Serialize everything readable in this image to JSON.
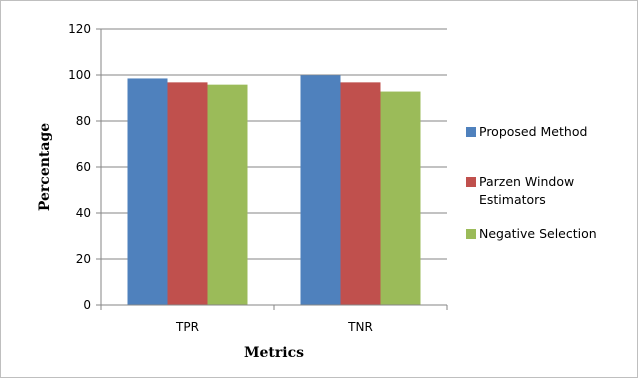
{
  "chart_data": {
    "type": "bar",
    "categories": [
      "TPR",
      "TNR"
    ],
    "series": [
      {
        "name": "Proposed Method",
        "values": [
          98.5,
          99.9
        ],
        "color": "#4F81BD"
      },
      {
        "name": "Parzen Window Estimators",
        "values": [
          96.8,
          96.8
        ],
        "color": "#C0504D"
      },
      {
        "name": "Negative Selection",
        "values": [
          95.8,
          92.8
        ],
        "color": "#9BBB59"
      }
    ],
    "xlabel": "Metrics",
    "ylabel": "Percentage",
    "ylim": [
      0,
      120
    ],
    "yticks": [
      0,
      20,
      40,
      60,
      80,
      100,
      120
    ],
    "grid": true,
    "legend_position": "right"
  }
}
